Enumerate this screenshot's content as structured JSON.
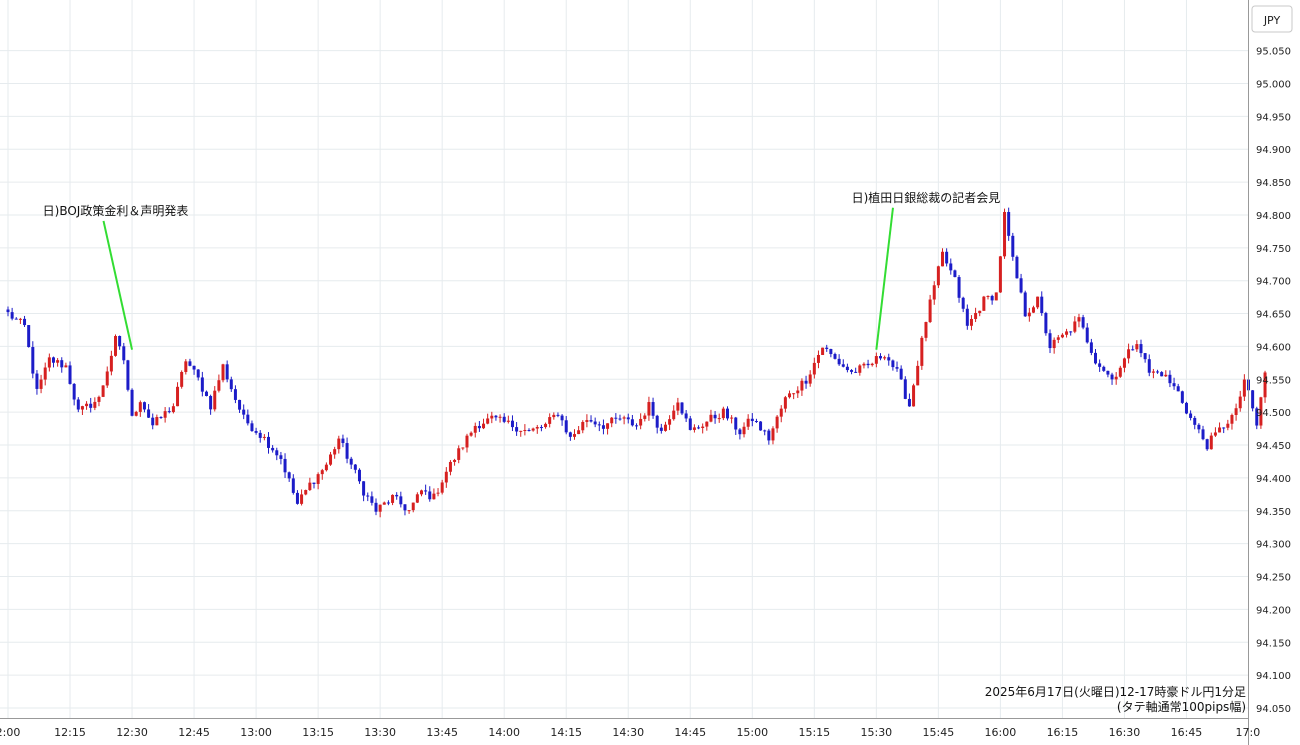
{
  "chart_data": {
    "type": "candlestick",
    "currency_label": "JPY",
    "note_lines": [
      "2025年6月17日(火曜日)12-17時豪ドル円1分足",
      "(タテ軸通常100pips幅)"
    ],
    "x_ticks": [
      "2:00",
      "12:15",
      "12:30",
      "12:45",
      "13:00",
      "13:15",
      "13:30",
      "13:45",
      "14:00",
      "14:15",
      "14:30",
      "14:45",
      "15:00",
      "15:15",
      "15:30",
      "15:45",
      "16:00",
      "16:15",
      "16:30",
      "16:45",
      "17:0"
    ],
    "y_ticks": [
      "94.050",
      "94.100",
      "94.150",
      "94.200",
      "94.250",
      "94.300",
      "94.350",
      "94.400",
      "94.450",
      "94.500",
      "94.550",
      "94.600",
      "94.650",
      "94.700",
      "94.750",
      "94.800",
      "94.850",
      "94.900",
      "94.950",
      "95.000",
      "95.050"
    ],
    "ylim": [
      94.05,
      95.05
    ],
    "up_color": "#d62020",
    "down_color": "#1c1cc8",
    "annotations": [
      {
        "text": "日)BOJ政策金利＆声明発表",
        "time_index": 30,
        "price": 94.595,
        "text_time_index": 26,
        "text_price": 94.8
      },
      {
        "text": "日)植田日銀総裁の記者会見",
        "time_index": 210,
        "price": 94.595,
        "text_time_index": 222,
        "text_price": 94.82
      }
    ],
    "key_points": [
      [
        0,
        94.65
      ],
      [
        4,
        94.63
      ],
      [
        7,
        94.53
      ],
      [
        10,
        94.58
      ],
      [
        14,
        94.57
      ],
      [
        17,
        94.5
      ],
      [
        22,
        94.52
      ],
      [
        26,
        94.61
      ],
      [
        28,
        94.58
      ],
      [
        30,
        94.49
      ],
      [
        32,
        94.52
      ],
      [
        35,
        94.48
      ],
      [
        40,
        94.51
      ],
      [
        43,
        94.58
      ],
      [
        46,
        94.55
      ],
      [
        49,
        94.51
      ],
      [
        52,
        94.57
      ],
      [
        55,
        94.52
      ],
      [
        57,
        94.49
      ],
      [
        62,
        94.46
      ],
      [
        66,
        94.43
      ],
      [
        70,
        94.36
      ],
      [
        73,
        94.39
      ],
      [
        77,
        94.42
      ],
      [
        80,
        94.46
      ],
      [
        83,
        94.42
      ],
      [
        86,
        94.38
      ],
      [
        89,
        94.35
      ],
      [
        93,
        94.37
      ],
      [
        97,
        94.35
      ],
      [
        100,
        94.38
      ],
      [
        103,
        94.37
      ],
      [
        106,
        94.41
      ],
      [
        109,
        94.44
      ],
      [
        113,
        94.48
      ],
      [
        117,
        94.49
      ],
      [
        122,
        94.48
      ],
      [
        126,
        94.47
      ],
      [
        130,
        94.48
      ],
      [
        133,
        94.5
      ],
      [
        136,
        94.46
      ],
      [
        140,
        94.49
      ],
      [
        144,
        94.48
      ],
      [
        148,
        94.49
      ],
      [
        152,
        94.48
      ],
      [
        155,
        94.51
      ],
      [
        158,
        94.47
      ],
      [
        162,
        94.52
      ],
      [
        165,
        94.47
      ],
      [
        170,
        94.49
      ],
      [
        173,
        94.5
      ],
      [
        177,
        94.47
      ],
      [
        180,
        94.49
      ],
      [
        184,
        94.46
      ],
      [
        188,
        94.52
      ],
      [
        193,
        94.55
      ],
      [
        197,
        94.6
      ],
      [
        200,
        94.58
      ],
      [
        204,
        94.56
      ],
      [
        208,
        94.57
      ],
      [
        212,
        94.59
      ],
      [
        215,
        94.56
      ],
      [
        218,
        94.51
      ],
      [
        222,
        94.64
      ],
      [
        226,
        94.74
      ],
      [
        229,
        94.7
      ],
      [
        232,
        94.63
      ],
      [
        236,
        94.67
      ],
      [
        239,
        94.68
      ],
      [
        241,
        94.8
      ],
      [
        243,
        94.73
      ],
      [
        246,
        94.65
      ],
      [
        249,
        94.67
      ],
      [
        252,
        94.6
      ],
      [
        256,
        94.62
      ],
      [
        259,
        94.64
      ],
      [
        263,
        94.58
      ],
      [
        267,
        94.55
      ],
      [
        270,
        94.58
      ],
      [
        273,
        94.61
      ],
      [
        276,
        94.56
      ],
      [
        279,
        94.56
      ],
      [
        283,
        94.53
      ],
      [
        286,
        94.49
      ],
      [
        290,
        94.45
      ],
      [
        294,
        94.48
      ],
      [
        297,
        94.5
      ],
      [
        299,
        94.55
      ],
      [
        302,
        94.48
      ],
      [
        304,
        94.56
      ]
    ],
    "minutes": 305
  }
}
